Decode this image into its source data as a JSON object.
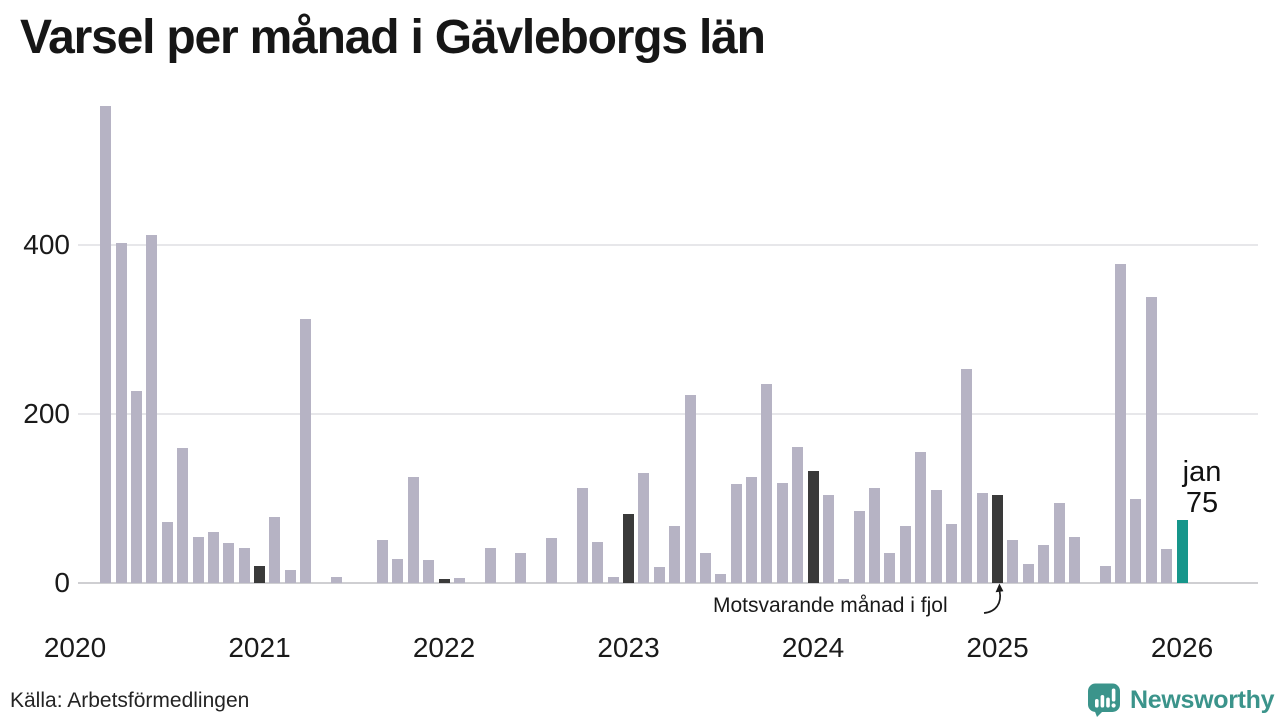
{
  "title": "Varsel per månad i Gävleborgs län",
  "source": "Källa: Arbetsförmedlingen",
  "branding": {
    "name": "Newsworthy",
    "color": "#3b948b"
  },
  "annotation": {
    "text": "Motsvarande månad i fjol"
  },
  "current_label": {
    "month": "jan",
    "value": "75"
  },
  "colors": {
    "bar": "#b6b3c4",
    "last_year": "#3a3a3a",
    "current": "#16968b",
    "grid": "#e7e7ea",
    "axis": "#cfcfd2",
    "text": "#1a1a1a"
  },
  "y_axis": {
    "ticks": [
      0,
      200,
      400
    ]
  },
  "x_axis": {
    "ticks": [
      "2020",
      "2021",
      "2022",
      "2023",
      "2024",
      "2025",
      "2026"
    ]
  },
  "chart_data": {
    "type": "bar",
    "title": "Varsel per månad i Gävleborgs län",
    "xlabel": "",
    "ylabel": "",
    "ylim": [
      0,
      600
    ],
    "grid": true,
    "legend_position": "none",
    "x": [
      "2020-01",
      "2020-02",
      "2020-03",
      "2020-04",
      "2020-05",
      "2020-06",
      "2020-07",
      "2020-08",
      "2020-09",
      "2020-10",
      "2020-11",
      "2020-12",
      "2021-01",
      "2021-02",
      "2021-03",
      "2021-04",
      "2021-05",
      "2021-06",
      "2021-07",
      "2021-08",
      "2021-09",
      "2021-10",
      "2021-11",
      "2021-12",
      "2022-01",
      "2022-02",
      "2022-03",
      "2022-04",
      "2022-05",
      "2022-06",
      "2022-07",
      "2022-08",
      "2022-09",
      "2022-10",
      "2022-11",
      "2022-12",
      "2023-01",
      "2023-02",
      "2023-03",
      "2023-04",
      "2023-05",
      "2023-06",
      "2023-07",
      "2023-08",
      "2023-09",
      "2023-10",
      "2023-11",
      "2023-12",
      "2024-01",
      "2024-02",
      "2024-03",
      "2024-04",
      "2024-05",
      "2024-06",
      "2024-07",
      "2024-08",
      "2024-09",
      "2024-10",
      "2024-11",
      "2024-12",
      "2025-01",
      "2025-02",
      "2025-03",
      "2025-04",
      "2025-05",
      "2025-06",
      "2025-07",
      "2025-08",
      "2025-09",
      "2025-10",
      "2025-11",
      "2025-12",
      "2026-01"
    ],
    "values": [
      0,
      0,
      565,
      402,
      227,
      412,
      72,
      160,
      55,
      60,
      47,
      41,
      20,
      78,
      15,
      313,
      0,
      7,
      0,
      0,
      51,
      28,
      125,
      27,
      5,
      6,
      0,
      42,
      0,
      36,
      0,
      53,
      0,
      113,
      48,
      7,
      82,
      130,
      19,
      68,
      222,
      35,
      11,
      117,
      126,
      235,
      118,
      161,
      133,
      104,
      5,
      85,
      113,
      36,
      68,
      155,
      110,
      70,
      253,
      107,
      104,
      51,
      23,
      45,
      95,
      54,
      0,
      20,
      378,
      100,
      338,
      40,
      75
    ],
    "last_year_months": [
      "2021-01",
      "2022-01",
      "2023-01",
      "2024-01",
      "2025-01"
    ],
    "current_month": "2026-01"
  }
}
